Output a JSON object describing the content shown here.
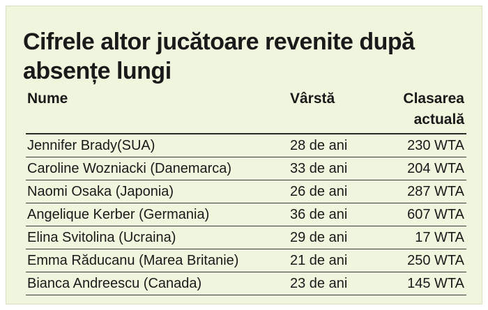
{
  "title": "Cifrele altor jucătoare revenite după absențe lungi",
  "headers": {
    "name": "Nume",
    "age": "Vârstă",
    "rank_line1": "Clasarea",
    "rank_line2": "actuală"
  },
  "rows": [
    {
      "name": "Jennifer Brady(SUA)",
      "age": "28 de ani",
      "rank": "230 WTA"
    },
    {
      "name": "Caroline Wozniacki (Danemarca)",
      "age": "33 de ani",
      "rank": "204 WTA"
    },
    {
      "name": "Naomi Osaka (Japonia)",
      "age": "26 de ani",
      "rank": "287 WTA"
    },
    {
      "name": "Angelique Kerber (Germania)",
      "age": "36 de ani",
      "rank": "607 WTA"
    },
    {
      "name": "Elina Svitolina (Ucraina)",
      "age": "29 de ani",
      "rank": "17 WTA"
    },
    {
      "name": "Emma Răducanu (Marea Britanie)",
      "age": "21 de ani",
      "rank": "250 WTA"
    },
    {
      "name": "Bianca Andreescu (Canada)",
      "age": "23 de ani",
      "rank": "145 WTA"
    }
  ]
}
